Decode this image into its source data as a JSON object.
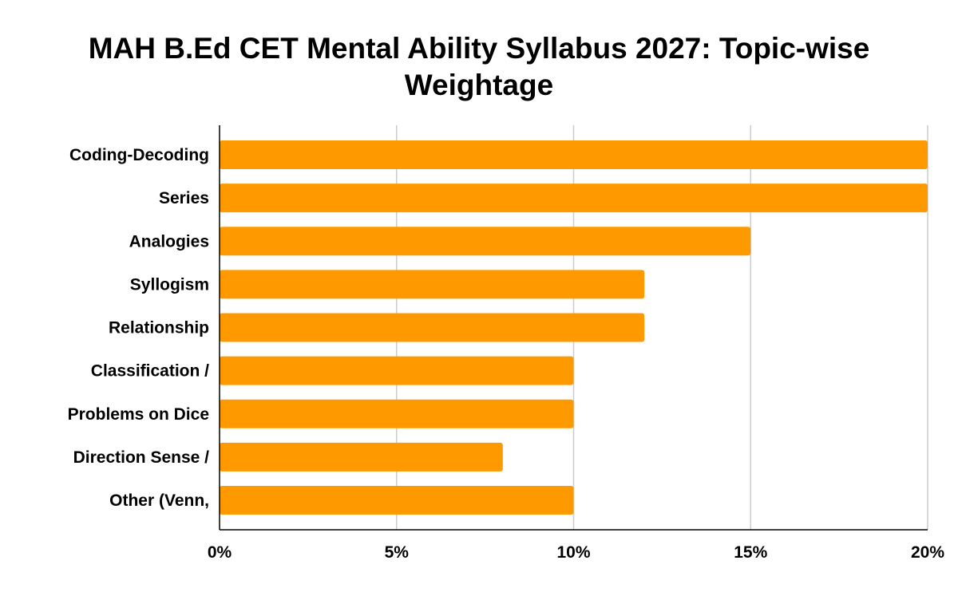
{
  "chart_data": {
    "type": "bar",
    "orientation": "horizontal",
    "title": "MAH B.Ed CET Mental Ability Syllabus 2027: Topic-wise Weightage",
    "xlabel": "",
    "ylabel": "",
    "categories": [
      "Coding-Decoding",
      "Series",
      "Analogies",
      "Syllogism",
      "Relationship",
      "Classification /",
      "Problems on Dice",
      "Direction Sense /",
      "Other (Venn,"
    ],
    "values": [
      20,
      20,
      15,
      12,
      12,
      10,
      10,
      8,
      10
    ],
    "xlim": [
      0,
      20
    ],
    "xticks": [
      0,
      5,
      10,
      15,
      20
    ],
    "tick_labels": [
      "0%",
      "5%",
      "10%",
      "15%",
      "20%"
    ],
    "grid": true,
    "legend": "none",
    "colors": {
      "bar": "#FF9900",
      "grid": "#CCCCCC",
      "axis": "#000000"
    }
  }
}
